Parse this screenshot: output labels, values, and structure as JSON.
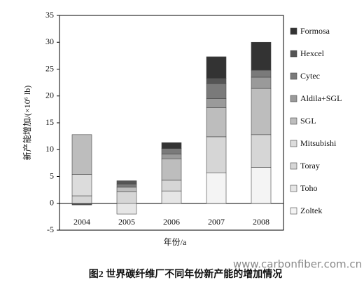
{
  "chart_data": {
    "type": "stacked_bar",
    "ylabel": "新产能增加/(×10⁶ lb)",
    "xlabel": "年份/a",
    "caption": "图2  世界碳纤维厂不同年份新产能的增加情况",
    "watermark": "www.carbonfiber.com.cn",
    "categories": [
      "2004",
      "2005",
      "2006",
      "2007",
      "2008"
    ],
    "series": [
      {
        "name": "Zoltek",
        "color": "#f4f4f4",
        "values": [
          0,
          0,
          0,
          5.7,
          6.7
        ]
      },
      {
        "name": "Toho",
        "color": "#e6e6e6",
        "values": [
          0,
          -2.0,
          2.3,
          0,
          0
        ]
      },
      {
        "name": "Toray",
        "color": "#d6d6d6",
        "values": [
          1.4,
          2.2,
          2.0,
          6.7,
          6.1
        ]
      },
      {
        "name": "Mitsubishi",
        "color": "#dcdcdc",
        "values": [
          4.0,
          0,
          0,
          0,
          0
        ]
      },
      {
        "name": "SGL",
        "color": "#bdbdbd",
        "values": [
          7.4,
          0.8,
          4.0,
          5.4,
          8.6
        ]
      },
      {
        "name": "Aldila+SGL",
        "color": "#9a9a9a",
        "values": [
          0,
          0,
          0.9,
          1.7,
          2.1
        ]
      },
      {
        "name": "Cytec",
        "color": "#7a7a7a",
        "values": [
          0,
          0.6,
          1.0,
          2.8,
          1.3
        ]
      },
      {
        "name": "Hexcel",
        "color": "#555555",
        "values": [
          -0.3,
          0.6,
          0,
          1.0,
          0
        ]
      },
      {
        "name": "Formosa",
        "color": "#333333",
        "values": [
          0,
          0,
          1.1,
          4.0,
          5.2
        ]
      }
    ],
    "ylim": [
      -5,
      35
    ],
    "yticks": [
      -5,
      0,
      5,
      10,
      15,
      20,
      25,
      30,
      35
    ]
  }
}
